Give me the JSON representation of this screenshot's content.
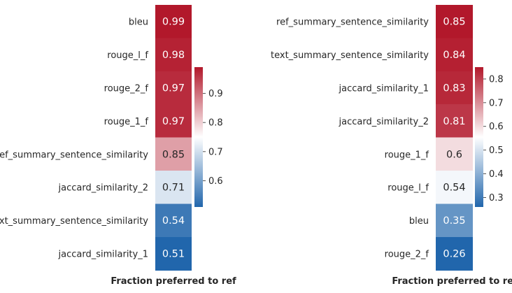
{
  "chart_data": [
    {
      "type": "heatmap",
      "xlabel": "Fraction preferred to ref",
      "categories": [
        "bleu",
        "rouge_l_f",
        "rouge_2_f",
        "rouge_1_f",
        "ref_summary_sentence_similarity",
        "jaccard_similarity_2",
        "text_summary_sentence_similarity",
        "jaccard_similarity_1"
      ],
      "values": [
        0.99,
        0.98,
        0.97,
        0.97,
        0.85,
        0.71,
        0.54,
        0.51
      ],
      "value_range": [
        0.51,
        0.99
      ],
      "colorbar_ticks": [
        0.6,
        0.7,
        0.8,
        0.9
      ],
      "colormap": [
        "#2166ac",
        "#ffffff",
        "#b2182b"
      ]
    },
    {
      "type": "heatmap",
      "xlabel": "Fraction preferred to ref",
      "categories": [
        "ref_summary_sentence_similarity",
        "text_summary_sentence_similarity",
        "jaccard_similarity_1",
        "jaccard_similarity_2",
        "rouge_1_f",
        "rouge_l_f",
        "bleu",
        "rouge_2_f"
      ],
      "values": [
        0.85,
        0.84,
        0.83,
        0.81,
        0.6,
        0.54,
        0.35,
        0.26
      ],
      "value_range": [
        0.26,
        0.85
      ],
      "colorbar_ticks": [
        0.3,
        0.4,
        0.5,
        0.6,
        0.7,
        0.8
      ],
      "colormap": [
        "#2166ac",
        "#ffffff",
        "#b2182b"
      ]
    }
  ]
}
